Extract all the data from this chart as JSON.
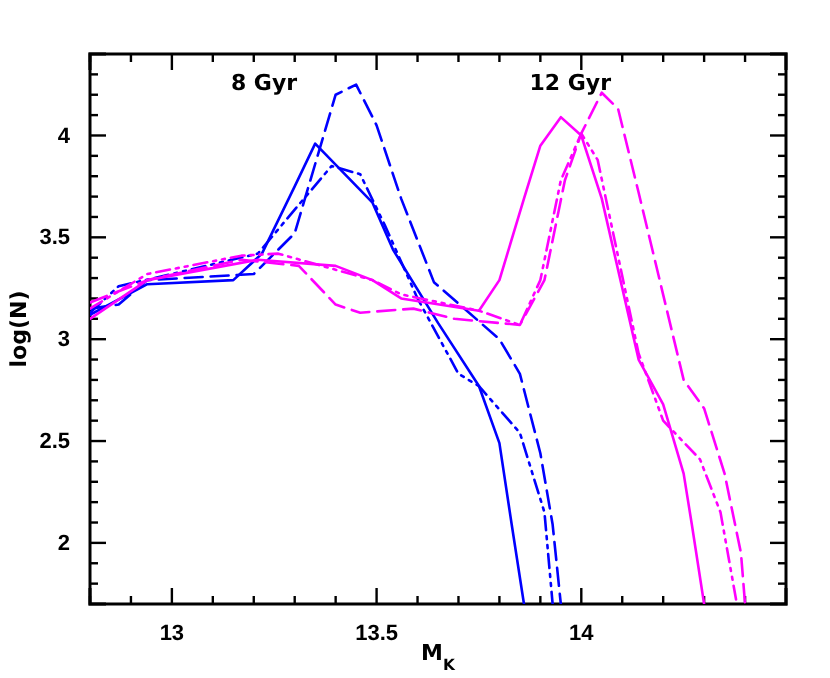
{
  "chart_data": {
    "type": "line",
    "xlabel": "M$_{K}$",
    "ylabel": "log(N)",
    "xlim": [
      12.8,
      14.5
    ],
    "ylim": [
      1.7,
      4.4
    ],
    "xticks": [
      {
        "value": 12.8,
        "label": null
      },
      {
        "value": 12.9,
        "label": null
      },
      13,
      {
        "value": 13.1,
        "label": null
      },
      {
        "value": 13.2,
        "label": null
      },
      {
        "value": 13.3,
        "label": null
      },
      {
        "value": 13.4,
        "label": null
      },
      13.5,
      {
        "value": 13.6,
        "label": null
      },
      {
        "value": 13.7,
        "label": null
      },
      {
        "value": 13.8,
        "label": null
      },
      {
        "value": 13.9,
        "label": null
      },
      14,
      {
        "value": 14.1,
        "label": null
      },
      {
        "value": 14.2,
        "label": null
      },
      {
        "value": 14.3,
        "label": null
      },
      {
        "value": 14.4,
        "label": null
      }
    ],
    "yticks": [
      {
        "value": 1.8,
        "label": null
      },
      {
        "value": 1.9,
        "label": null
      },
      2,
      {
        "value": 2.1,
        "label": null
      },
      {
        "value": 2.2,
        "label": null
      },
      {
        "value": 2.3,
        "label": null
      },
      {
        "value": 2.4,
        "label": null
      },
      2.5,
      {
        "value": 2.6,
        "label": null
      },
      {
        "value": 2.7,
        "label": null
      },
      {
        "value": 2.8,
        "label": null
      },
      {
        "value": 2.9,
        "label": null
      },
      3,
      {
        "value": 3.1,
        "label": null
      },
      {
        "value": 3.2,
        "label": null
      },
      {
        "value": 3.3,
        "label": null
      },
      {
        "value": 3.4,
        "label": null
      },
      3.5,
      {
        "value": 3.6,
        "label": null
      },
      {
        "value": 3.7,
        "label": null
      },
      {
        "value": 3.8,
        "label": null
      },
      {
        "value": 3.9,
        "label": null
      },
      4,
      {
        "value": 4.1,
        "label": null
      },
      {
        "value": 4.2,
        "label": null
      },
      {
        "value": 4.3,
        "label": null
      }
    ],
    "annotations": [
      "8 Gyr",
      "12 Gyr"
    ],
    "series": [
      {
        "color": "#0000ff",
        "line_style": "solid",
        "x": [
          12.8,
          12.94,
          13.15,
          13.22,
          13.3,
          13.35,
          13.49,
          13.54,
          13.65,
          13.75,
          13.8,
          13.83,
          13.86
        ],
        "values": [
          3.12,
          3.27,
          3.29,
          3.42,
          3.75,
          3.96,
          3.67,
          3.44,
          3.08,
          2.77,
          2.49,
          2.09,
          1.7
        ]
      },
      {
        "color": "#0000ff",
        "line_style": "dashed",
        "x": [
          12.8,
          12.87,
          12.94,
          13.2,
          13.3,
          13.4,
          13.45,
          13.5,
          13.56,
          13.64,
          13.8,
          13.85,
          13.9,
          13.93,
          13.95
        ],
        "values": [
          3.15,
          3.17,
          3.29,
          3.32,
          3.52,
          4.2,
          4.25,
          4.05,
          3.69,
          3.28,
          3.0,
          2.83,
          2.44,
          2.09,
          1.7
        ]
      },
      {
        "color": "#0000ff",
        "line_style": "dashdot",
        "x": [
          12.8,
          12.87,
          13.0,
          13.21,
          13.31,
          13.39,
          13.46,
          13.52,
          13.6,
          13.7,
          13.75,
          13.85,
          13.91,
          13.93
        ],
        "values": [
          3.13,
          3.26,
          3.32,
          3.42,
          3.66,
          3.85,
          3.81,
          3.56,
          3.2,
          2.83,
          2.77,
          2.54,
          2.15,
          1.7
        ]
      },
      {
        "color": "#ff00ff",
        "line_style": "solid",
        "x": [
          12.8,
          12.94,
          13.21,
          13.4,
          13.49,
          13.56,
          13.75,
          13.8,
          13.86,
          13.9,
          13.95,
          14.0,
          14.05,
          14.14,
          14.2,
          14.25,
          14.27,
          14.3
        ],
        "values": [
          3.1,
          3.29,
          3.39,
          3.36,
          3.29,
          3.2,
          3.14,
          3.29,
          3.69,
          3.95,
          4.09,
          4.0,
          3.69,
          2.9,
          2.68,
          2.34,
          2.09,
          1.7
        ]
      },
      {
        "color": "#ff00ff",
        "line_style": "dashed",
        "x": [
          12.8,
          12.94,
          13.17,
          13.31,
          13.4,
          13.46,
          13.59,
          13.69,
          13.85,
          13.91,
          13.96,
          14.0,
          14.05,
          14.09,
          14.14,
          14.25,
          14.3,
          14.35,
          14.39,
          14.4
        ],
        "values": [
          3.18,
          3.29,
          3.39,
          3.36,
          3.17,
          3.13,
          3.15,
          3.1,
          3.07,
          3.29,
          3.78,
          4.01,
          4.21,
          4.13,
          3.72,
          2.8,
          2.66,
          2.34,
          1.95,
          1.7
        ]
      },
      {
        "color": "#ff00ff",
        "line_style": "dashdot",
        "x": [
          12.8,
          12.94,
          13.17,
          13.26,
          13.49,
          13.56,
          13.75,
          13.85,
          13.9,
          13.95,
          14.0,
          14.04,
          14.14,
          14.2,
          14.29,
          14.34,
          14.38
        ],
        "values": [
          3.15,
          3.32,
          3.41,
          3.42,
          3.29,
          3.22,
          3.14,
          3.07,
          3.29,
          3.78,
          4.01,
          3.88,
          2.93,
          2.6,
          2.41,
          2.15,
          1.7
        ]
      }
    ]
  }
}
